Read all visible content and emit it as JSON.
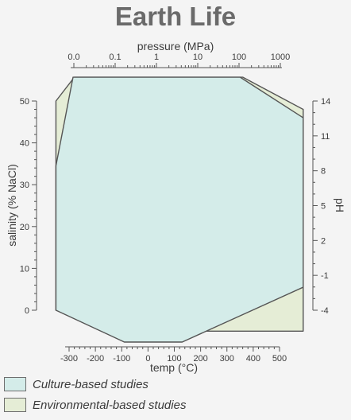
{
  "chart_data": {
    "type": "area",
    "title": "Earth Life",
    "axes": {
      "bottom": {
        "label": "temp (°C)",
        "range": [
          -300,
          500
        ],
        "ticks": [
          -300,
          -200,
          -100,
          0,
          100,
          200,
          300,
          400,
          500
        ]
      },
      "top": {
        "label": "pressure (MPa)",
        "scale": "log",
        "range": [
          0.01,
          1000
        ],
        "tick_labels": [
          "0.0",
          "0.1",
          "1",
          "10",
          "100",
          "1000"
        ]
      },
      "left": {
        "label": "salinity (% NaCl)",
        "range": [
          0,
          50
        ],
        "ticks": [
          0,
          10,
          20,
          30,
          40,
          50
        ]
      },
      "right": {
        "label": "pH",
        "range": [
          -4,
          14
        ],
        "ticks": [
          -4,
          -1,
          2,
          5,
          8,
          11,
          14
        ]
      }
    },
    "grid": false,
    "legend_position": "bottom-left",
    "series": [
      {
        "name": "Environmental-based studies",
        "color": "#e5edd6",
        "polygon": [
          {
            "temp": -350,
            "pressure": 0.015,
            "salinity": 50,
            "pH": 14
          },
          {
            "temp": -350,
            "pressure": 0.015,
            "salinity": 34.5,
            "pH": 7.7
          },
          {
            "temp": -350,
            "pressure": 0.015,
            "salinity": 0,
            "pH": -4
          },
          {
            "temp": -90,
            "pressure": 0.015,
            "salinity": -5,
            "pH": -5.8
          },
          {
            "temp": 125,
            "pressure": 0.015,
            "salinity": -5,
            "pH": -5.8
          },
          {
            "temp": 590,
            "pressure": 1000,
            "salinity": -5,
            "pH": -2
          },
          {
            "temp": 590,
            "pressure": 1000,
            "salinity": 46.7,
            "pH": 13
          },
          {
            "temp": 590,
            "pressure": 1000,
            "salinity": 48,
            "pH": 13.3
          },
          {
            "temp": 360,
            "pressure": 200,
            "salinity": 55.7,
            "pH": 16
          },
          {
            "temp": -280,
            "pressure": 0.015,
            "salinity": 55.7,
            "pH": 16
          }
        ]
      },
      {
        "name": "Culture-based studies",
        "color": "#d4ece9",
        "polygon": [
          {
            "temp": -285,
            "pressure": 0.015,
            "salinity": 55.7,
            "pH": 16
          },
          {
            "temp": 350,
            "pressure": 150,
            "salinity": 55.7,
            "pH": 16
          },
          {
            "temp": 590,
            "pressure": 1000,
            "salinity": 46,
            "pH": 12.6
          },
          {
            "temp": 590,
            "pressure": 1000,
            "salinity": 5.5,
            "pH": -1.8
          },
          {
            "temp": 130,
            "pressure": 0.015,
            "salinity": -8,
            "pH": -6.5
          },
          {
            "temp": -90,
            "pressure": 0.015,
            "salinity": -8,
            "pH": -6.5
          },
          {
            "temp": -350,
            "pressure": 0.015,
            "salinity": 0,
            "pH": -4
          },
          {
            "temp": -350,
            "pressure": 0.015,
            "salinity": 34.5,
            "pH": 7.7
          }
        ]
      }
    ]
  },
  "legend": [
    {
      "label": "Culture-based studies",
      "color": "#d4ece9"
    },
    {
      "label": "Environmental-based studies",
      "color": "#e5edd6"
    }
  ]
}
